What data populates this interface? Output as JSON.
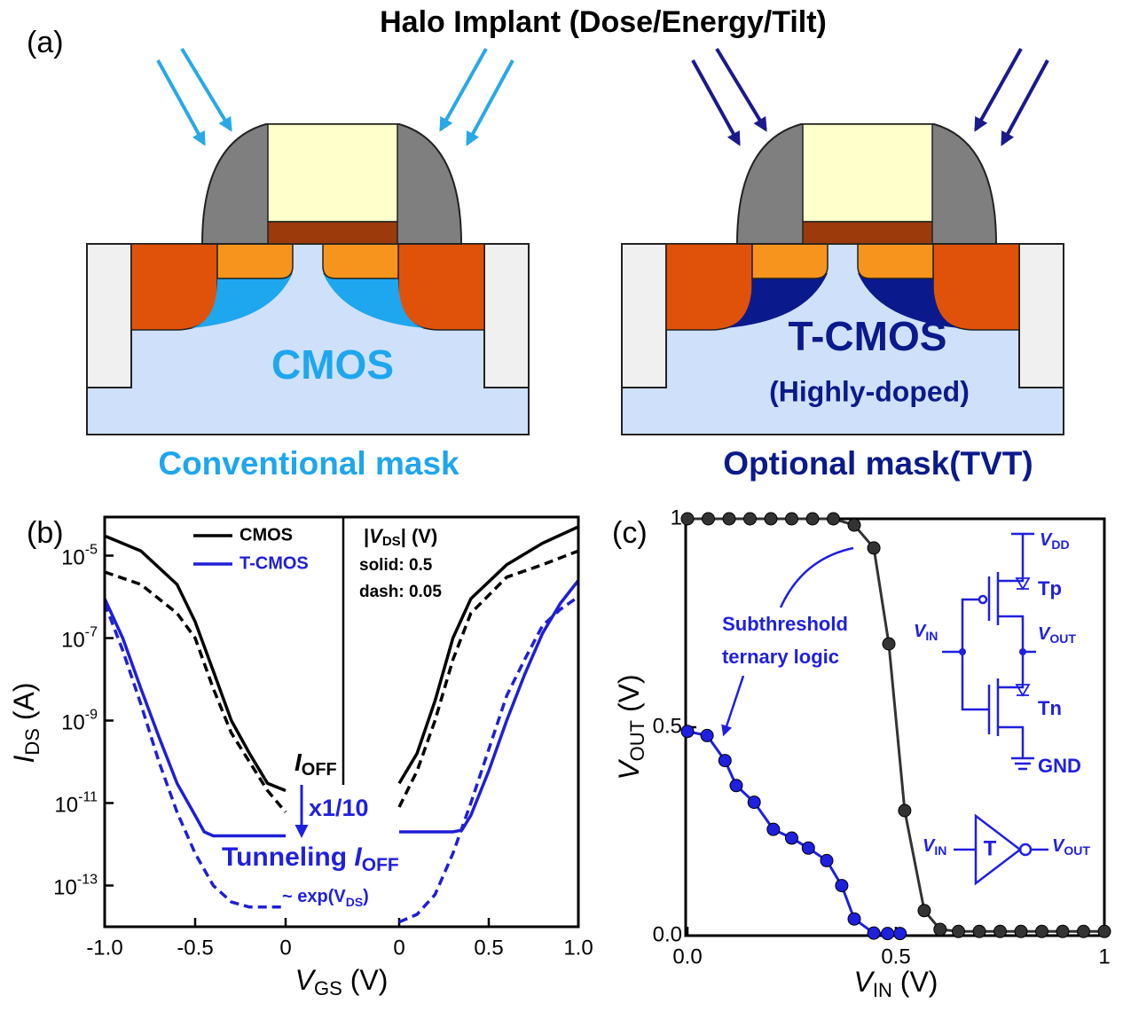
{
  "panel_a": {
    "label": "(a)",
    "title": "Halo Implant (Dose/Energy/Tilt)",
    "left": {
      "device": "CMOS",
      "caption": "Conventional mask"
    },
    "right": {
      "device": "T-CMOS",
      "device_note": "(Highly-doped)",
      "caption": "Optional mask(TVT)"
    }
  },
  "chart_data": [
    {
      "type": "line",
      "label": "(b)",
      "log_y": true,
      "xlabel": [
        "V",
        "GS",
        " (V)"
      ],
      "ylabel": [
        "I",
        "DS",
        " (A)"
      ],
      "ylim": [
        1e-14,
        0.0001
      ],
      "yticks": [
        {
          "value": 1e-05,
          "label": "10",
          "exponent": "-5"
        },
        {
          "value": 1e-07,
          "label": "10",
          "exponent": "-7"
        },
        {
          "value": 1e-09,
          "label": "10",
          "exponent": "-9"
        },
        {
          "value": 1e-11,
          "label": "10",
          "exponent": "-11"
        },
        {
          "value": 1e-13,
          "label": "10",
          "exponent": "-13"
        }
      ],
      "xaxes": [
        {
          "xlim": [
            -1,
            0
          ],
          "xticks": [
            {
              "value": -1,
              "label": "-1.0"
            },
            -0.5,
            0
          ]
        },
        {
          "xlim": [
            0,
            1
          ],
          "xticks": [
            0,
            0.5,
            {
              "value": 1,
              "label": "1.0"
            }
          ]
        }
      ],
      "legend_title": [
        "|",
        "V",
        "DS",
        "| (V)"
      ],
      "legend_notes": [
        "solid: 0.5",
        "dash: 0.05"
      ],
      "annotations": {
        "ioff": [
          "I",
          "OFF"
        ],
        "ratio": "x1/10",
        "tunneling": [
          "Tunneling ",
          "I",
          "OFF"
        ],
        "exp": [
          "~ exp(V",
          "DS",
          ")"
        ]
      },
      "series": [
        {
          "name": "CMOS",
          "color": "#000000",
          "curves": [
            {
              "axis": 0,
              "dash": false,
              "x": [
                -1,
                -0.8,
                -0.6,
                -0.5,
                -0.4,
                -0.3,
                -0.2,
                -0.1,
                0
              ],
              "values": [
                3e-05,
                1.3e-05,
                2e-06,
                2.5e-07,
                1.6e-08,
                1e-09,
                1.6e-10,
                3e-11,
                2e-11
              ]
            },
            {
              "axis": 0,
              "dash": true,
              "x": [
                -1,
                -0.8,
                -0.6,
                -0.5,
                -0.4,
                -0.3,
                -0.2,
                -0.1,
                0
              ],
              "values": [
                4e-06,
                2e-06,
                4e-07,
                1e-07,
                6e-09,
                5e-10,
                1e-10,
                2e-11,
                6e-12
              ]
            },
            {
              "axis": 1,
              "dash": false,
              "x": [
                0,
                0.1,
                0.2,
                0.3,
                0.4,
                0.6,
                0.8,
                1
              ],
              "values": [
                3e-11,
                1.6e-10,
                3e-09,
                1e-07,
                9e-07,
                6e-06,
                2e-05,
                5e-05
              ]
            },
            {
              "axis": 1,
              "dash": true,
              "x": [
                0,
                0.1,
                0.2,
                0.3,
                0.4,
                0.6,
                0.8,
                1
              ],
              "values": [
                8e-12,
                6e-11,
                1e-09,
                3e-08,
                4e-07,
                3e-06,
                6e-06,
                1.3e-05
              ]
            }
          ]
        },
        {
          "name": "T-CMOS",
          "color": "#1f1fd6",
          "curves": [
            {
              "axis": 0,
              "dash": false,
              "x": [
                -1,
                -0.9,
                -0.8,
                -0.7,
                -0.6,
                -0.5,
                -0.45,
                -0.4,
                0
              ],
              "values": [
                9e-07,
                1e-07,
                6e-09,
                4e-10,
                3e-11,
                5e-12,
                2e-12,
                1.6e-12,
                1.6e-12
              ]
            },
            {
              "axis": 0,
              "dash": true,
              "x": [
                -1,
                -0.9,
                -0.8,
                -0.7,
                -0.6,
                -0.5,
                -0.4,
                -0.3,
                -0.2,
                0
              ],
              "values": [
                7e-07,
                5e-08,
                2.5e-09,
                1e-10,
                6e-12,
                6e-13,
                1e-13,
                4e-14,
                3e-14,
                3e-14
              ]
            },
            {
              "axis": 1,
              "dash": false,
              "x": [
                0,
                0.3,
                0.35,
                0.4,
                0.5,
                0.6,
                0.7,
                0.8,
                0.9,
                1
              ],
              "values": [
                2e-12,
                2e-12,
                2.2e-12,
                5e-12,
                6e-11,
                1e-09,
                1.3e-08,
                1.3e-07,
                7e-07,
                2.5e-06
              ]
            },
            {
              "axis": 1,
              "dash": true,
              "x": [
                0,
                0.1,
                0.2,
                0.3,
                0.4,
                0.5,
                0.6,
                0.7,
                0.8,
                0.9,
                1
              ],
              "values": [
                1.3e-14,
                2e-14,
                6e-14,
                6e-13,
                1e-11,
                2e-10,
                4e-09,
                3e-08,
                2e-07,
                5e-07,
                1e-06
              ]
            }
          ]
        }
      ]
    },
    {
      "type": "line",
      "label": "(c)",
      "markers": true,
      "xlabel": [
        "V",
        "IN",
        " (V)"
      ],
      "ylabel": [
        "V",
        "OUT",
        " (V)"
      ],
      "xlim": [
        0,
        1
      ],
      "xticks": [
        {
          "value": 0,
          "label": "0.0"
        },
        0.5,
        1
      ],
      "ylim": [
        0,
        1
      ],
      "yticks": [
        {
          "value": 0,
          "label": "0.0"
        },
        0.5,
        1
      ],
      "annotations": {
        "note": [
          "Subthreshold",
          "ternary logic"
        ]
      },
      "circuit": {
        "vdd": [
          "V",
          "DD"
        ],
        "tp": "Tp",
        "vin": [
          "V",
          "IN"
        ],
        "vout": [
          "V",
          "OUT"
        ],
        "tn": "Tn",
        "gnd": "GND"
      },
      "inverter": {
        "vin": [
          "V",
          "IN"
        ],
        "symbol": "T",
        "vout": [
          "V",
          "OUT"
        ]
      },
      "series": [
        {
          "name": "CMOS",
          "color": "#333333",
          "x": [
            0,
            0.05,
            0.1,
            0.15,
            0.2,
            0.25,
            0.3,
            0.35,
            0.4,
            0.447,
            0.483,
            0.521,
            0.568,
            0.606,
            0.65,
            0.7,
            0.75,
            0.8,
            0.85,
            0.9,
            0.95,
            1
          ],
          "values": [
            1,
            1,
            1,
            1,
            1,
            1,
            1,
            1,
            0.985,
            0.93,
            0.7,
            0.3,
            0.06,
            0.015,
            0.01,
            0.01,
            0.01,
            0.01,
            0.01,
            0.01,
            0.01,
            0.01
          ]
        },
        {
          "name": "T-CMOS",
          "color": "#1f1fe0",
          "x": [
            0,
            0.047,
            0.09,
            0.117,
            0.16,
            0.206,
            0.25,
            0.29,
            0.334,
            0.37,
            0.4,
            0.447,
            0.48,
            0.51
          ],
          "values": [
            0.49,
            0.48,
            0.42,
            0.36,
            0.32,
            0.255,
            0.234,
            0.21,
            0.18,
            0.12,
            0.04,
            0.006,
            0.005,
            0.005
          ]
        }
      ]
    }
  ]
}
